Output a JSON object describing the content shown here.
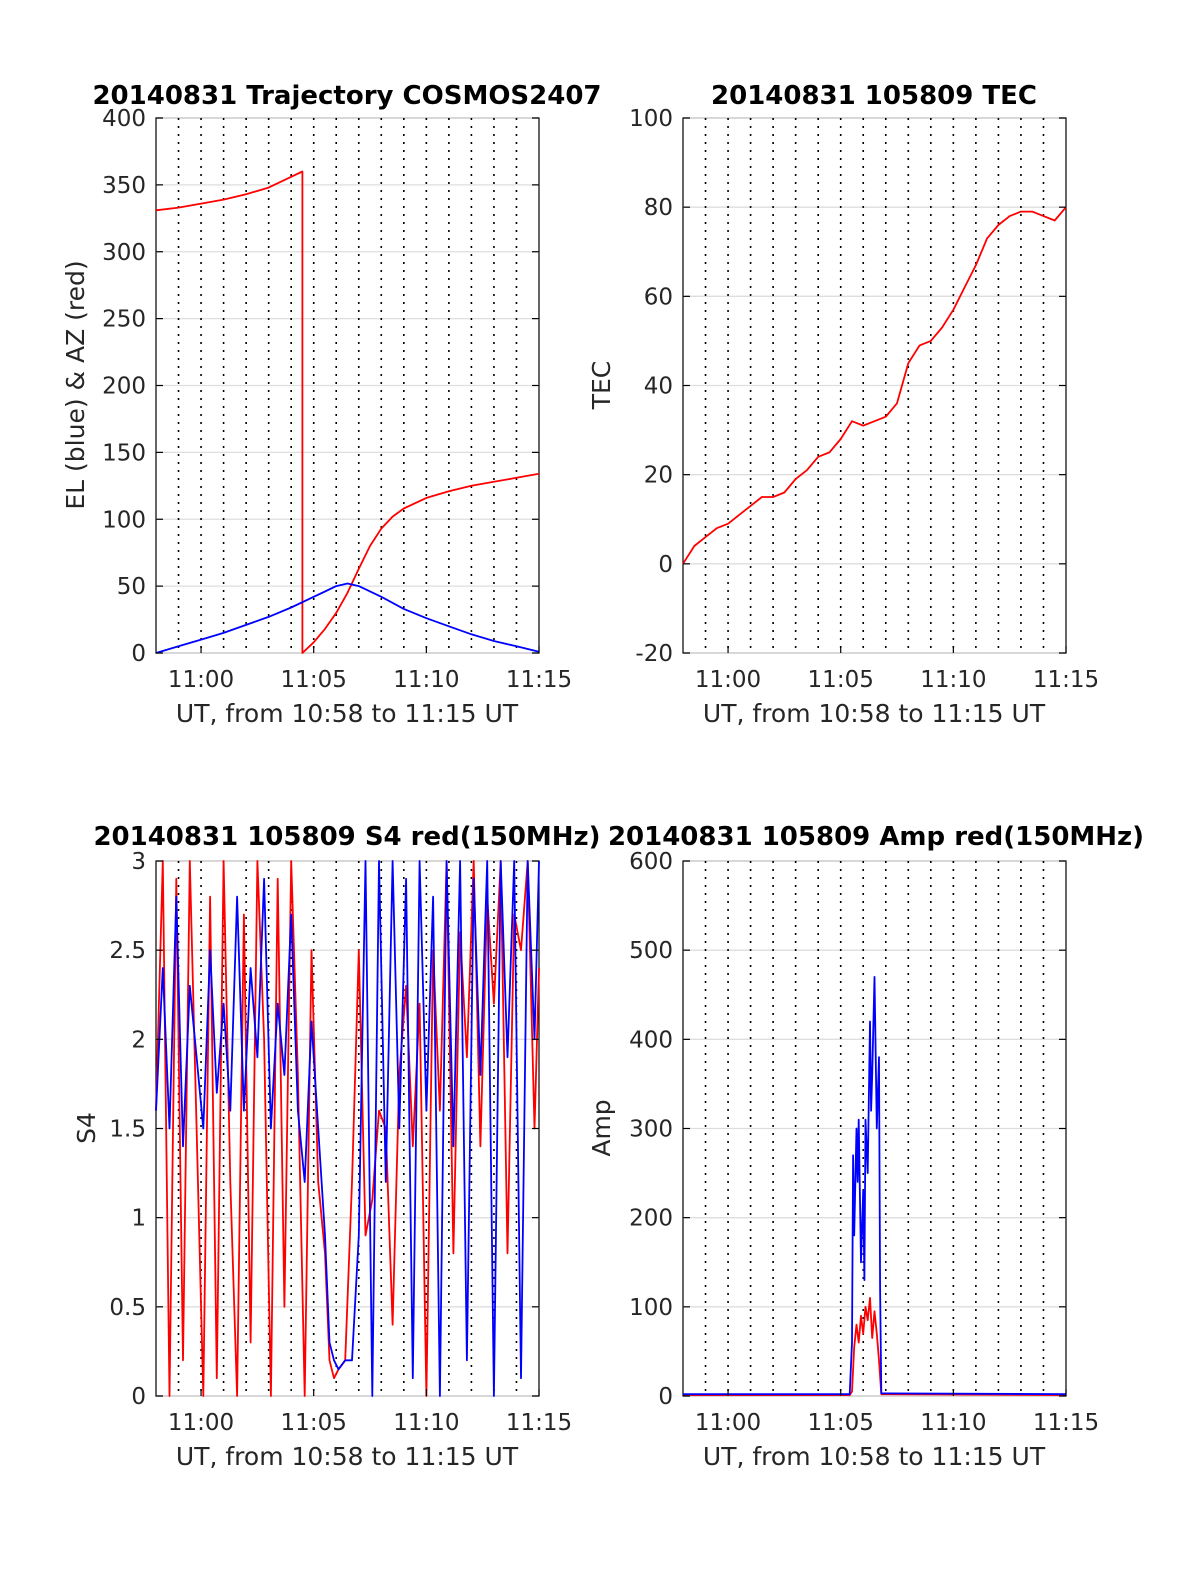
{
  "figure": {
    "xtick_labels": [
      "11:00",
      "11:05",
      "11:10",
      "11:15"
    ]
  },
  "chart_data": [
    {
      "id": "trajectory",
      "type": "line",
      "title": "20140831 Trajectory COSMOS2407",
      "xlabel": "UT, from 10:58 to 11:15 UT",
      "ylabel": "EL (blue) & AZ (red)",
      "x_unit": "minutes after 10:58 UT",
      "xlim": [
        0,
        17
      ],
      "ylim": [
        0,
        400
      ],
      "yticks": [
        0,
        50,
        100,
        150,
        200,
        250,
        300,
        350,
        400
      ],
      "xticks": [
        2,
        7,
        12,
        17
      ],
      "grid": true,
      "series": [
        {
          "color": "#ff0000",
          "x": [
            0,
            1,
            2,
            3,
            4,
            5,
            5.5,
            6,
            6.5,
            6.5,
            7,
            7.5,
            8,
            8.5,
            9,
            9.5,
            10,
            10.5,
            11,
            12,
            13,
            14,
            15,
            16,
            17
          ],
          "y": [
            331,
            333,
            336,
            339,
            343,
            348,
            352,
            356,
            360,
            0,
            8,
            18,
            30,
            45,
            63,
            80,
            93,
            102,
            108,
            116,
            121,
            125,
            128,
            131,
            134
          ]
        },
        {
          "color": "#0000ff",
          "x": [
            0,
            1,
            2,
            3,
            4,
            5,
            6,
            7,
            7.5,
            8,
            8.5,
            9,
            10,
            11,
            12,
            13,
            14,
            15,
            16,
            17
          ],
          "y": [
            0,
            5,
            10,
            15,
            21,
            27,
            34,
            42,
            46,
            50,
            52,
            50,
            42,
            33,
            26,
            20,
            14,
            9,
            5,
            1
          ]
        }
      ]
    },
    {
      "id": "tec",
      "type": "line",
      "title": "20140831 105809 TEC",
      "xlabel": "UT, from 10:58 to 11:15 UT",
      "ylabel": "TEC",
      "x_unit": "minutes after 10:58 UT",
      "xlim": [
        0,
        17
      ],
      "ylim": [
        -20,
        100
      ],
      "yticks": [
        -20,
        0,
        20,
        40,
        60,
        80,
        100
      ],
      "xticks": [
        2,
        7,
        12,
        17
      ],
      "grid": true,
      "series": [
        {
          "color": "#ff0000",
          "x": [
            0,
            0.5,
            1,
            1.5,
            2,
            2.5,
            3,
            3.5,
            4,
            4.5,
            5,
            5.5,
            6,
            6.5,
            7,
            7.5,
            8,
            8.5,
            9,
            9.5,
            10,
            10.5,
            11,
            11.5,
            12,
            12.5,
            13,
            13.5,
            14,
            14.5,
            15,
            15.5,
            16,
            16.5,
            17
          ],
          "y": [
            0,
            4,
            6,
            8,
            9,
            11,
            13,
            15,
            15,
            16,
            19,
            21,
            24,
            25,
            28,
            32,
            31,
            32,
            33,
            36,
            45,
            49,
            50,
            53,
            57,
            62,
            67,
            73,
            76,
            78,
            79,
            79,
            78,
            77,
            80
          ]
        }
      ]
    },
    {
      "id": "s4",
      "type": "line",
      "title": "20140831 105809 S4 red(150MHz)",
      "xlabel": "UT, from 10:58 to 11:15 UT",
      "ylabel": "S4",
      "x_unit": "minutes after 10:58 UT",
      "xlim": [
        0,
        17
      ],
      "ylim": [
        0,
        3
      ],
      "yticks": [
        0,
        0.5,
        1,
        1.5,
        2,
        2.5,
        3
      ],
      "xticks": [
        2,
        7,
        12,
        17
      ],
      "grid": true,
      "series": [
        {
          "color": "#ff0000",
          "x": [
            0,
            0.3,
            0.6,
            0.9,
            1.2,
            1.5,
            1.8,
            2.1,
            2.4,
            2.7,
            3.0,
            3.3,
            3.6,
            3.9,
            4.2,
            4.5,
            4.8,
            5.1,
            5.4,
            5.7,
            6.0,
            6.3,
            6.6,
            6.9,
            7.2,
            7.5,
            7.7,
            7.9,
            8.1,
            8.4,
            8.7,
            9.0,
            9.3,
            9.6,
            9.9,
            10.2,
            10.5,
            10.8,
            11.1,
            11.4,
            11.7,
            12.0,
            12.3,
            12.6,
            12.9,
            13.2,
            13.5,
            13.8,
            14.1,
            14.4,
            14.7,
            15.0,
            15.3,
            15.6,
            15.9,
            16.2,
            16.5,
            16.8,
            17
          ],
          "y": [
            1.6,
            3,
            0,
            2.9,
            0.2,
            3,
            1.5,
            0,
            2.8,
            0.1,
            3,
            1.2,
            0,
            2.7,
            0.3,
            3,
            2,
            0,
            2.9,
            0.5,
            3,
            1.8,
            0,
            2.5,
            1.2,
            0.8,
            0.2,
            0.1,
            0.15,
            0.2,
            1.2,
            2.5,
            0.9,
            1.1,
            1.6,
            1.5,
            0.4,
            1.8,
            2.3,
            1.4,
            2.2,
            0,
            2.5,
            1.6,
            3,
            0.8,
            2.6,
            1.9,
            3,
            1.4,
            2.8,
            2.2,
            3,
            0.8,
            2.7,
            2.5,
            3,
            1.5,
            2.4
          ]
        },
        {
          "color": "#0000ff",
          "x": [
            0,
            0.3,
            0.6,
            0.9,
            1.2,
            1.5,
            1.8,
            2.1,
            2.4,
            2.7,
            3.0,
            3.3,
            3.6,
            3.9,
            4.2,
            4.5,
            4.8,
            5.1,
            5.4,
            5.7,
            6.0,
            6.3,
            6.6,
            6.9,
            7.2,
            7.5,
            7.7,
            7.9,
            8.1,
            8.4,
            8.7,
            9.0,
            9.3,
            9.6,
            9.9,
            10.2,
            10.5,
            10.8,
            11.1,
            11.4,
            11.7,
            12.0,
            12.3,
            12.6,
            12.9,
            13.2,
            13.5,
            13.8,
            14.1,
            14.4,
            14.7,
            15.0,
            15.3,
            15.6,
            15.9,
            16.2,
            16.5,
            16.8,
            17
          ],
          "y": [
            1.6,
            2.4,
            1.5,
            2.8,
            1.4,
            2.3,
            1.9,
            1.5,
            2.5,
            1.7,
            2.2,
            1.6,
            2.8,
            1.6,
            2.4,
            1.9,
            2.9,
            1.5,
            2.2,
            1.8,
            2.7,
            1.6,
            1.2,
            2.1,
            1.5,
            0.9,
            0.3,
            0.2,
            0.15,
            0.2,
            0.2,
            0.9,
            3,
            0,
            3,
            1.2,
            3,
            1.5,
            2.9,
            0.1,
            3,
            1.6,
            2.8,
            0,
            3,
            1.4,
            3,
            0.2,
            2.9,
            1.8,
            3,
            0,
            3,
            1.9,
            3,
            0.1,
            3,
            2,
            3
          ]
        }
      ]
    },
    {
      "id": "amp",
      "type": "line",
      "title": "20140831 105809 Amp red(150MHz)",
      "xlabel": "UT, from 10:58 to 11:15 UT",
      "ylabel": "Amp",
      "x_unit": "minutes after 10:58 UT",
      "xlim": [
        0,
        17
      ],
      "ylim": [
        0,
        600
      ],
      "yticks": [
        0,
        100,
        200,
        300,
        400,
        500,
        600
      ],
      "xticks": [
        2,
        7,
        12,
        17
      ],
      "grid": true,
      "series": [
        {
          "color": "#ff0000",
          "x": [
            0,
            7.4,
            7.5,
            7.6,
            7.7,
            7.8,
            7.9,
            8.0,
            8.1,
            8.2,
            8.3,
            8.4,
            8.5,
            8.6,
            8.7,
            8.8,
            17
          ],
          "y": [
            1,
            1,
            5,
            55,
            80,
            60,
            90,
            70,
            100,
            85,
            110,
            65,
            95,
            70,
            40,
            2,
            1
          ]
        },
        {
          "color": "#0000ff",
          "x": [
            0,
            7.4,
            7.5,
            7.55,
            7.6,
            7.7,
            7.75,
            7.8,
            7.9,
            8.0,
            8.05,
            8.1,
            8.2,
            8.3,
            8.35,
            8.4,
            8.5,
            8.6,
            8.7,
            8.75,
            8.8,
            17
          ],
          "y": [
            2,
            2,
            60,
            270,
            180,
            300,
            240,
            310,
            150,
            230,
            130,
            310,
            250,
            420,
            320,
            360,
            470,
            300,
            380,
            120,
            3,
            2
          ]
        }
      ]
    }
  ]
}
